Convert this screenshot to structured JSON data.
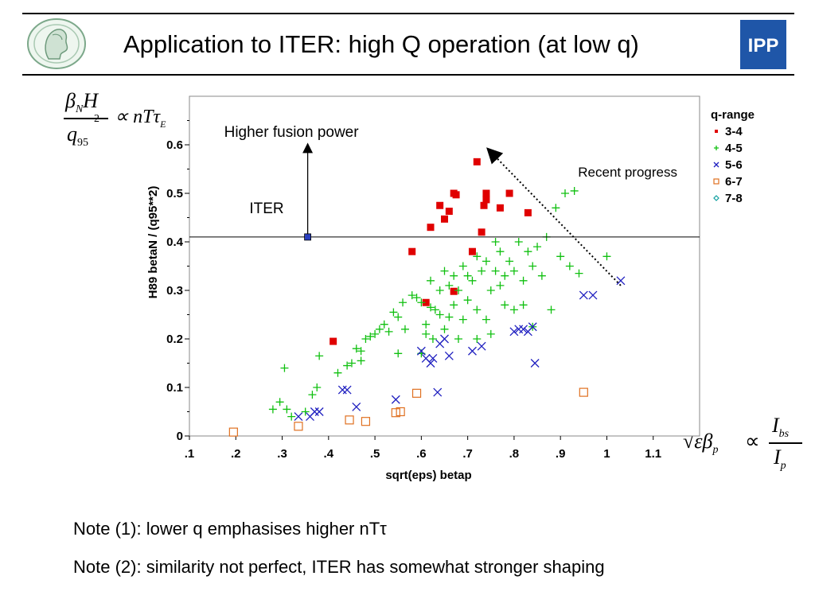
{
  "slide": {
    "title": "Application to ITER: high Q operation (at low q)",
    "rule_color": "#000000",
    "logo_right_text": "IPP",
    "logo_right_color": "#1f56a8"
  },
  "equation_left": {
    "num_beta": "β",
    "num_sub": "N",
    "num_h": "H",
    "den_q": "q",
    "den_sub": "95",
    "den_sup": "2",
    "rhs": "∝ nTτ",
    "rhs_sub": "E"
  },
  "equation_right": {
    "lhs": "√εβ",
    "lhs_sub": "p",
    "prop": "∝",
    "num": "I",
    "num_sub": "bs",
    "den": "I",
    "den_sub": "p"
  },
  "notes": [
    "Note (1): lower q emphasises higher nTτ",
    "Note (2): similarity not perfect, ITER has somewhat stronger shaping"
  ],
  "chart_data": {
    "type": "scatter",
    "xlabel": "sqrt(eps) betap",
    "ylabel": "H89 betaN / (q95**2)",
    "xlim": [
      0.1,
      1.2
    ],
    "ylim": [
      0,
      0.7
    ],
    "x_ticks": [
      0.1,
      0.2,
      0.3,
      0.4,
      0.5,
      0.6,
      0.7,
      0.8,
      0.9,
      1.0,
      1.1
    ],
    "x_tick_labels": [
      ".1",
      ".2",
      ".3",
      ".4",
      ".5",
      ".6",
      ".7",
      ".8",
      ".9",
      "1",
      "1.1"
    ],
    "y_ticks": [
      0,
      0.1,
      0.2,
      0.3,
      0.4,
      0.5,
      0.6
    ],
    "y_tick_labels": [
      "0",
      "0.1",
      "0.2",
      "0.3",
      "0.4",
      "0.5",
      "0.6"
    ],
    "grid": false,
    "legend_title": "q-range",
    "legend_position": "top-right outside",
    "series": [
      {
        "name": "3-4",
        "color": "#e00000",
        "marker": "square-filled",
        "legend_marker": "square-small",
        "points": [
          [
            0.41,
            0.195
          ],
          [
            0.58,
            0.38
          ],
          [
            0.61,
            0.275
          ],
          [
            0.62,
            0.43
          ],
          [
            0.64,
            0.475
          ],
          [
            0.65,
            0.447
          ],
          [
            0.66,
            0.463
          ],
          [
            0.67,
            0.298
          ],
          [
            0.67,
            0.5
          ],
          [
            0.675,
            0.497
          ],
          [
            0.71,
            0.38
          ],
          [
            0.72,
            0.565
          ],
          [
            0.73,
            0.42
          ],
          [
            0.735,
            0.475
          ],
          [
            0.74,
            0.5
          ],
          [
            0.74,
            0.487
          ],
          [
            0.77,
            0.47
          ],
          [
            0.79,
            0.5
          ],
          [
            0.83,
            0.46
          ]
        ]
      },
      {
        "name": "4-5",
        "color": "#10c010",
        "marker": "plus",
        "points": [
          [
            0.28,
            0.055
          ],
          [
            0.295,
            0.07
          ],
          [
            0.305,
            0.14
          ],
          [
            0.31,
            0.055
          ],
          [
            0.32,
            0.04
          ],
          [
            0.35,
            0.05
          ],
          [
            0.365,
            0.085
          ],
          [
            0.375,
            0.1
          ],
          [
            0.38,
            0.165
          ],
          [
            0.42,
            0.13
          ],
          [
            0.44,
            0.145
          ],
          [
            0.45,
            0.15
          ],
          [
            0.46,
            0.18
          ],
          [
            0.47,
            0.155
          ],
          [
            0.47,
            0.175
          ],
          [
            0.48,
            0.2
          ],
          [
            0.49,
            0.205
          ],
          [
            0.5,
            0.21
          ],
          [
            0.51,
            0.22
          ],
          [
            0.52,
            0.23
          ],
          [
            0.53,
            0.215
          ],
          [
            0.54,
            0.255
          ],
          [
            0.55,
            0.17
          ],
          [
            0.55,
            0.245
          ],
          [
            0.56,
            0.275
          ],
          [
            0.565,
            0.22
          ],
          [
            0.58,
            0.29
          ],
          [
            0.59,
            0.285
          ],
          [
            0.6,
            0.275
          ],
          [
            0.6,
            0.17
          ],
          [
            0.61,
            0.21
          ],
          [
            0.61,
            0.23
          ],
          [
            0.62,
            0.265
          ],
          [
            0.62,
            0.32
          ],
          [
            0.625,
            0.2
          ],
          [
            0.63,
            0.26
          ],
          [
            0.64,
            0.3
          ],
          [
            0.64,
            0.25
          ],
          [
            0.65,
            0.34
          ],
          [
            0.65,
            0.22
          ],
          [
            0.66,
            0.31
          ],
          [
            0.66,
            0.245
          ],
          [
            0.67,
            0.33
          ],
          [
            0.67,
            0.27
          ],
          [
            0.68,
            0.2
          ],
          [
            0.68,
            0.3
          ],
          [
            0.69,
            0.35
          ],
          [
            0.69,
            0.24
          ],
          [
            0.7,
            0.28
          ],
          [
            0.7,
            0.33
          ],
          [
            0.71,
            0.32
          ],
          [
            0.72,
            0.37
          ],
          [
            0.72,
            0.26
          ],
          [
            0.72,
            0.2
          ],
          [
            0.73,
            0.34
          ],
          [
            0.74,
            0.36
          ],
          [
            0.74,
            0.24
          ],
          [
            0.75,
            0.3
          ],
          [
            0.75,
            0.21
          ],
          [
            0.76,
            0.4
          ],
          [
            0.76,
            0.34
          ],
          [
            0.77,
            0.38
          ],
          [
            0.77,
            0.31
          ],
          [
            0.78,
            0.33
          ],
          [
            0.78,
            0.27
          ],
          [
            0.79,
            0.36
          ],
          [
            0.8,
            0.26
          ],
          [
            0.8,
            0.34
          ],
          [
            0.81,
            0.4
          ],
          [
            0.82,
            0.32
          ],
          [
            0.82,
            0.27
          ],
          [
            0.83,
            0.38
          ],
          [
            0.84,
            0.225
          ],
          [
            0.84,
            0.35
          ],
          [
            0.85,
            0.39
          ],
          [
            0.86,
            0.33
          ],
          [
            0.87,
            0.41
          ],
          [
            0.88,
            0.26
          ],
          [
            0.89,
            0.47
          ],
          [
            0.9,
            0.37
          ],
          [
            0.91,
            0.5
          ],
          [
            0.92,
            0.35
          ],
          [
            0.93,
            0.505
          ],
          [
            0.94,
            0.335
          ],
          [
            1.0,
            0.37
          ]
        ]
      },
      {
        "name": "5-6",
        "color": "#2020c0",
        "marker": "cross",
        "points": [
          [
            0.335,
            0.04
          ],
          [
            0.36,
            0.04
          ],
          [
            0.37,
            0.05
          ],
          [
            0.38,
            0.05
          ],
          [
            0.43,
            0.095
          ],
          [
            0.44,
            0.095
          ],
          [
            0.46,
            0.06
          ],
          [
            0.545,
            0.075
          ],
          [
            0.6,
            0.175
          ],
          [
            0.61,
            0.16
          ],
          [
            0.62,
            0.15
          ],
          [
            0.625,
            0.16
          ],
          [
            0.635,
            0.09
          ],
          [
            0.64,
            0.19
          ],
          [
            0.65,
            0.2
          ],
          [
            0.66,
            0.165
          ],
          [
            0.71,
            0.175
          ],
          [
            0.73,
            0.185
          ],
          [
            0.8,
            0.215
          ],
          [
            0.81,
            0.22
          ],
          [
            0.82,
            0.22
          ],
          [
            0.83,
            0.215
          ],
          [
            0.84,
            0.225
          ],
          [
            0.845,
            0.15
          ],
          [
            0.95,
            0.29
          ],
          [
            0.97,
            0.29
          ],
          [
            1.03,
            0.32
          ]
        ]
      },
      {
        "name": "6-7",
        "color": "#e07020",
        "marker": "square-open",
        "points": [
          [
            0.195,
            0.008
          ],
          [
            0.335,
            0.02
          ],
          [
            0.445,
            0.033
          ],
          [
            0.48,
            0.03
          ],
          [
            0.545,
            0.048
          ],
          [
            0.555,
            0.05
          ],
          [
            0.59,
            0.088
          ],
          [
            0.95,
            0.09
          ]
        ]
      },
      {
        "name": "7-8",
        "color": "#10a0a0",
        "marker": "diamond-open",
        "points": []
      }
    ],
    "reference_line": {
      "label": "ITER",
      "y": 0.41,
      "point_x": 0.355,
      "point_color": "#2a3fbf"
    },
    "annotations": [
      {
        "text": "Higher fusion power",
        "arrow_from": [
          0.355,
          0.41
        ],
        "arrow_to": [
          0.355,
          0.6
        ]
      },
      {
        "text": "Recent progress",
        "arrow_from": [
          1.03,
          0.31
        ],
        "arrow_to": [
          0.745,
          0.59
        ]
      }
    ]
  }
}
